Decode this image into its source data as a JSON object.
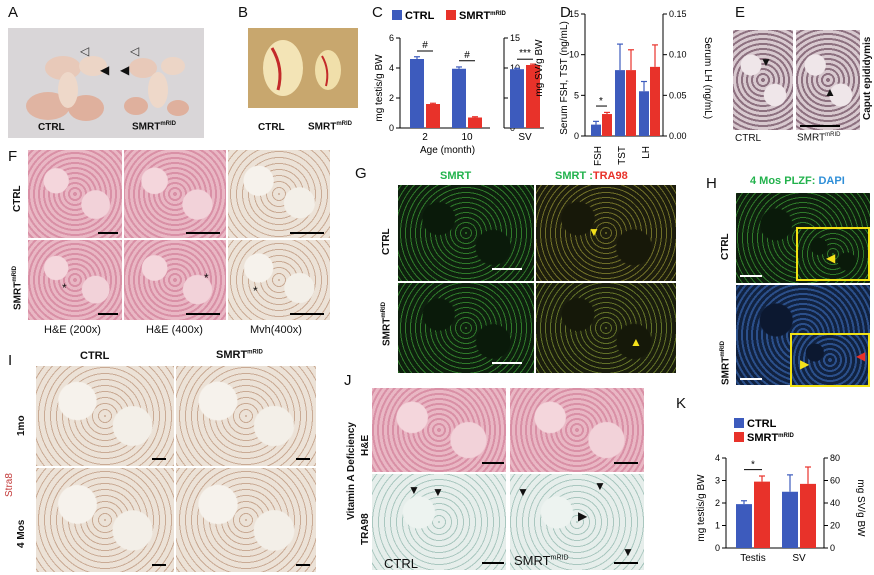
{
  "panels": {
    "A": {
      "label": "A",
      "ctrl": "CTRL",
      "mut": "SMRT",
      "mut_sup": "mRID"
    },
    "B": {
      "label": "B",
      "ctrl": "CTRL",
      "mut": "SMRT",
      "mut_sup": "mRID"
    },
    "C": {
      "label": "C"
    },
    "D": {
      "label": "D"
    },
    "E": {
      "label": "E",
      "side": "Caput epididymis",
      "ctrl": "CTRL",
      "mut": "SMRT",
      "mut_sup": "mRID"
    },
    "F": {
      "label": "F",
      "row1": "CTRL",
      "row2": "SMRT",
      "row2_sup": "mRID",
      "col1": "H&E (200x)",
      "col2": "H&E (400x)",
      "col3": "Mvh(400x)"
    },
    "G": {
      "label": "G",
      "col1": "SMRT",
      "col2a": "SMRT :",
      "col2b": "TRA98",
      "row1": "CTRL",
      "row2": "SMRT",
      "row2_sup": "mRID"
    },
    "H": {
      "label": "H",
      "title_a": "4 Mos ",
      "title_b": "PLZF",
      "title_c": ": ",
      "title_d": "DAPI",
      "row1": "CTRL",
      "row2": "SMRT",
      "row2_sup": "mRID"
    },
    "I": {
      "label": "I",
      "col1": "CTRL",
      "col2": "SMRT",
      "col2_sup": "mRID",
      "row1": "1mo",
      "row2": "4 Mos",
      "side": "Stra8"
    },
    "J": {
      "label": "J",
      "side1": "Vitamin A Deficiency",
      "side2": "H&E",
      "side3": "TRA98",
      "ctrl": "CTRL",
      "mut": "SMRT",
      "mut_sup": "mRID"
    },
    "K": {
      "label": "K"
    }
  },
  "colors": {
    "ctrl": "#3d5bbd",
    "mut": "#e8322a",
    "green": "#22b24c",
    "red": "#e8322a",
    "blue": "#2f8fd8"
  },
  "chart_data": [
    {
      "panel": "C",
      "type": "bar",
      "legend": [
        "CTRL",
        "SMRT"
      ],
      "legend_sup": "mRID",
      "categories": [
        "2",
        "10"
      ],
      "xlabel": "Age (month)",
      "ylabel": "mg testis/g BW",
      "ylim": [
        0,
        6
      ],
      "yticks": [
        0,
        2,
        4,
        6
      ],
      "series": [
        {
          "name": "CTRL",
          "values": [
            4.6,
            3.95
          ],
          "errors": [
            0.15,
            0.12
          ]
        },
        {
          "name": "SMRT",
          "values": [
            1.6,
            0.7
          ],
          "errors": [
            0.05,
            0.05
          ]
        }
      ],
      "annotations": [
        "#",
        "#"
      ],
      "secondary": {
        "category": "SV",
        "ylabel": "mg SV/g BW",
        "ylim": [
          0,
          15
        ],
        "yticks": [
          0,
          5,
          10,
          15
        ],
        "values": [
          9.8,
          10.5
        ],
        "errors": [
          0.15,
          0.15
        ],
        "annotation": "***"
      }
    },
    {
      "panel": "D",
      "type": "bar",
      "categories": [
        "FSH",
        "TST",
        "LH"
      ],
      "ylabel": "Serum FSH, TST (ng/mL)",
      "ylim": [
        0,
        15
      ],
      "yticks": [
        0,
        5,
        10,
        15
      ],
      "y2label": "Serum LH (ng/mL)",
      "y2lim": [
        0,
        0.15
      ],
      "y2ticks": [
        "0.00",
        "0.05",
        "0.10",
        "0.15"
      ],
      "series": [
        {
          "name": "CTRL",
          "values": [
            1.4,
            8.1,
            0.055
          ],
          "errors": [
            0.4,
            3.2,
            0.012
          ]
        },
        {
          "name": "SMRT",
          "values": [
            2.7,
            8.1,
            0.085
          ],
          "errors": [
            0.2,
            2.5,
            0.027
          ]
        }
      ],
      "annotations": [
        "*"
      ]
    },
    {
      "panel": "K",
      "type": "bar",
      "legend": [
        "CTRL",
        "SMRT"
      ],
      "legend_sup": "mRID",
      "categories": [
        "Testis",
        "SV"
      ],
      "ylabel": "mg testis/g BW",
      "ylim": [
        0,
        4
      ],
      "yticks": [
        0,
        1,
        2,
        3,
        4
      ],
      "y2label": "mg SV/g BW",
      "y2lim": [
        0,
        80
      ],
      "y2ticks": [
        0,
        20,
        40,
        60,
        80
      ],
      "series": [
        {
          "name": "CTRL",
          "values": [
            1.95,
            50
          ],
          "errors": [
            0.15,
            15
          ]
        },
        {
          "name": "SMRT",
          "values": [
            2.95,
            57
          ],
          "errors": [
            0.25,
            15
          ]
        }
      ],
      "annotations": [
        "*"
      ]
    }
  ]
}
